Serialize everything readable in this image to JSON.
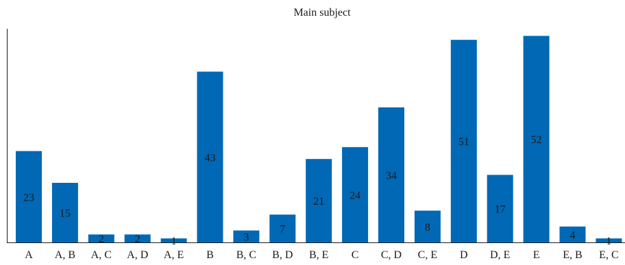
{
  "chart_data": {
    "type": "bar",
    "title": "Main subject",
    "xlabel": "",
    "ylabel": "",
    "categories": [
      "A",
      "A, B",
      "A, C",
      "A, D",
      "A, E",
      "B",
      "B, C",
      "B, D",
      "B, E",
      "C",
      "C, D",
      "C, E",
      "D",
      "D, E",
      "E",
      "E, B",
      "E, C"
    ],
    "values": [
      23,
      15,
      2,
      2,
      1,
      43,
      3,
      7,
      21,
      24,
      34,
      8,
      51,
      17,
      52,
      4,
      1
    ],
    "ylim": [
      0,
      55
    ],
    "grid": false,
    "legend": "none",
    "colors": {
      "bar": "#0068b5",
      "text": "#1a1a1a",
      "axis": "#1a1a1a"
    }
  }
}
